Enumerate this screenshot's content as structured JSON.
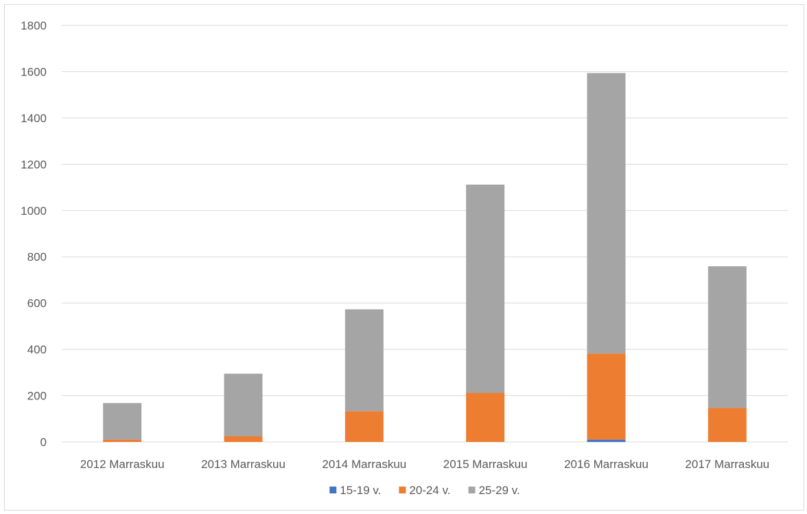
{
  "chart_data": {
    "type": "bar",
    "stacked": true,
    "categories": [
      "2012 Marraskuu",
      "2013 Marraskuu",
      "2014 Marraskuu",
      "2015 Marraskuu",
      "2016 Marraskuu",
      "2017 Marraskuu"
    ],
    "series": [
      {
        "name": "15-19 v.",
        "color": "#4472c4",
        "values": [
          0,
          0,
          0,
          0,
          10,
          0
        ]
      },
      {
        "name": "20-24 v.",
        "color": "#ed7d31",
        "values": [
          10,
          25,
          133,
          212,
          372,
          147
        ]
      },
      {
        "name": "25-29 v.",
        "color": "#a5a5a5",
        "values": [
          158,
          270,
          440,
          900,
          1212,
          612
        ]
      }
    ],
    "ylim": [
      0,
      1800
    ],
    "yticks": [
      "0",
      "200",
      "400",
      "600",
      "800",
      "1000",
      "1200",
      "1400",
      "1600",
      "1800"
    ],
    "grid": true,
    "legend_position": "bottom"
  }
}
